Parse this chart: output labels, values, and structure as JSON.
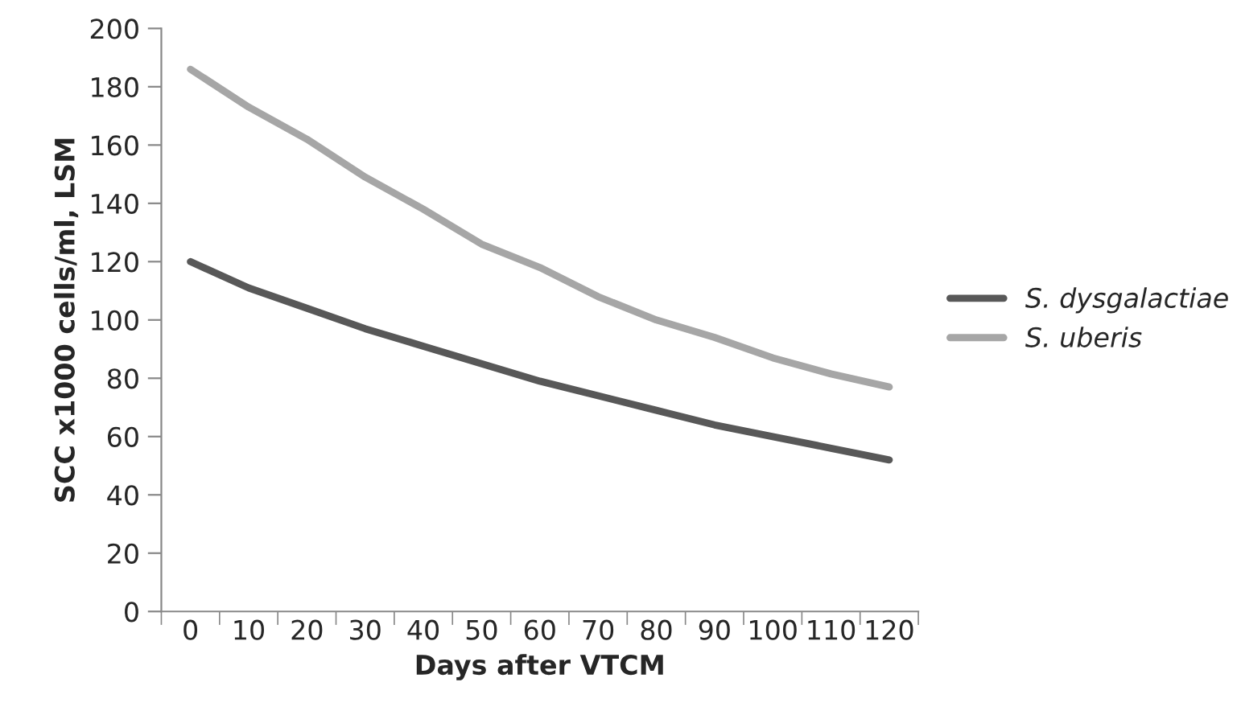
{
  "chart_data": {
    "type": "line",
    "xlabel": "Days after VTCM",
    "ylabel": "SCC x1000 cells/ml, LSM",
    "categories": [
      "0",
      "10",
      "20",
      "30",
      "40",
      "50",
      "60",
      "70",
      "80",
      "90",
      "100",
      "110",
      "120"
    ],
    "series": [
      {
        "name": "S. dysgalactiae",
        "color": "#585858",
        "values": [
          120,
          111,
          104,
          97,
          91,
          85,
          79,
          74,
          69,
          64,
          60,
          56,
          52
        ]
      },
      {
        "name": "S. uberis",
        "color": "#a6a6a6",
        "values": [
          186,
          173,
          162,
          149,
          138,
          126,
          118,
          108,
          100,
          94,
          87,
          81.5,
          77
        ]
      }
    ],
    "ylim": [
      0,
      200
    ],
    "yticks": [
      0,
      20,
      40,
      60,
      80,
      100,
      120,
      140,
      160,
      180,
      200
    ],
    "grid": false,
    "legend": "right",
    "marker": "none",
    "line_style": "solid"
  }
}
